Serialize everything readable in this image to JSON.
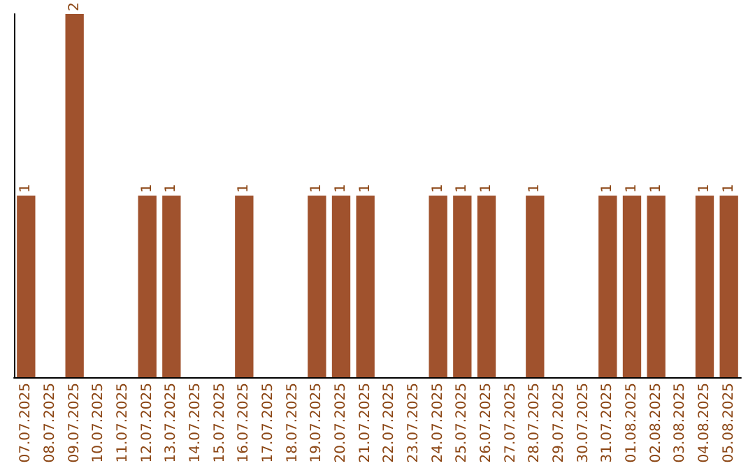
{
  "chart_data": {
    "type": "bar",
    "categories": [
      "07.07.2025",
      "08.07.2025",
      "09.07.2025",
      "10.07.2025",
      "11.07.2025",
      "12.07.2025",
      "13.07.2025",
      "14.07.2025",
      "15.07.2025",
      "16.07.2025",
      "17.07.2025",
      "18.07.2025",
      "19.07.2025",
      "20.07.2025",
      "21.07.2025",
      "22.07.2025",
      "23.07.2025",
      "24.07.2025",
      "25.07.2025",
      "26.07.2025",
      "27.07.2025",
      "28.07.2025",
      "29.07.2025",
      "30.07.2025",
      "31.07.2025",
      "01.08.2025",
      "02.08.2025",
      "03.08.2025",
      "04.08.2025",
      "05.08.2025"
    ],
    "values": [
      1,
      0,
      2,
      0,
      0,
      1,
      1,
      0,
      0,
      1,
      0,
      0,
      1,
      1,
      1,
      0,
      0,
      1,
      1,
      1,
      0,
      1,
      0,
      0,
      1,
      1,
      1,
      0,
      1,
      1
    ],
    "value_labels": [
      "1",
      null,
      "2",
      null,
      null,
      "1",
      "1",
      null,
      null,
      "1",
      null,
      null,
      "1",
      "1",
      "1",
      null,
      null,
      "1",
      "1",
      "1",
      null,
      "1",
      null,
      null,
      "1",
      "1",
      "1",
      null,
      "1",
      "1"
    ],
    "color": "#a0522d",
    "tick_labels": "x"
  }
}
